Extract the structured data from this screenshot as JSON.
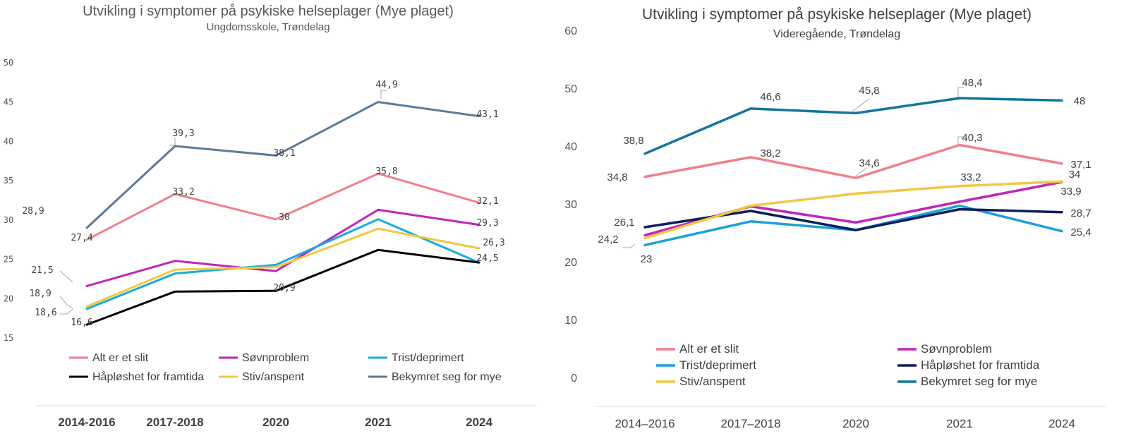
{
  "chart_data": [
    {
      "type": "line",
      "title": "Utvikling i symptomer på psykiske helseplager (Mye plaget)",
      "subtitle": "Ungdomsskole, Trøndelag",
      "categories": [
        "2014-2016",
        "2017-2018",
        "2020",
        "2021",
        "2024"
      ],
      "ylim": [
        15,
        50
      ],
      "yticks": [
        15,
        20,
        25,
        30,
        35,
        40,
        45,
        50
      ],
      "grid": false,
      "legend": "bottom",
      "series": [
        {
          "name": "Alt er et slit",
          "color": "#f07f8c",
          "values": [
            27.4,
            33.2,
            30,
            35.8,
            32.1
          ],
          "labels": [
            "27,4",
            "33,2",
            "30",
            "35,8",
            "32,1"
          ]
        },
        {
          "name": "Søvnproblem",
          "color": "#c026b8",
          "values": [
            21.5,
            24.7,
            23.4,
            31.2,
            29.3
          ],
          "labels": [
            "21,5",
            "",
            "",
            "",
            "29,3"
          ]
        },
        {
          "name": "Trist/deprimert",
          "color": "#1aabe0",
          "values": [
            18.6,
            23.1,
            24.2,
            30.0,
            24.5
          ],
          "labels": [
            "18,6",
            "",
            "",
            "",
            "24,5"
          ]
        },
        {
          "name": "Håpløshet for framtida",
          "color": "#000000",
          "values": [
            16.6,
            20.8,
            20.9,
            26.1,
            24.5
          ],
          "labels": [
            "16,6",
            "",
            "20,9",
            "",
            ""
          ]
        },
        {
          "name": "Stiv/anspent",
          "color": "#f2c744",
          "values": [
            18.9,
            23.6,
            23.9,
            28.8,
            26.3
          ],
          "labels": [
            "18,9",
            "",
            "",
            "",
            "26,3"
          ]
        },
        {
          "name": "Bekymret seg for mye",
          "color": "#5b7a99",
          "values": [
            28.9,
            39.3,
            38.1,
            44.9,
            43.1
          ],
          "labels": [
            "28,9",
            "39,3",
            "38,1",
            "44,9",
            "43,1"
          ]
        }
      ]
    },
    {
      "type": "line",
      "title": "Utvikling i symptomer på psykiske helseplager (Mye plaget)",
      "subtitle": "Videregående, Trøndelag",
      "categories": [
        "2014–2016",
        "2017–2018",
        "2020",
        "2021",
        "2024"
      ],
      "ylim": [
        0,
        60
      ],
      "yticks": [
        0,
        10,
        20,
        30,
        40,
        50,
        60
      ],
      "grid": false,
      "legend": "bottom",
      "series": [
        {
          "name": "Alt er et slit",
          "color": "#f07f8c",
          "values": [
            34.8,
            38.2,
            34.6,
            40.3,
            37.1
          ],
          "labels": [
            "34,8",
            "38,2",
            "34,6",
            "40,3",
            "37,1"
          ]
        },
        {
          "name": "Søvnproblem",
          "color": "#c026b8",
          "values": [
            24.7,
            29.7,
            26.9,
            30.5,
            33.9
          ],
          "labels": [
            "",
            "",
            "",
            "",
            "33,9"
          ]
        },
        {
          "name": "Trist/deprimert",
          "color": "#1aa1d9",
          "values": [
            23,
            27.1,
            25.6,
            29.8,
            25.4
          ],
          "labels": [
            "23",
            "",
            "",
            "",
            "25,4"
          ]
        },
        {
          "name": "Håpløshet for framtida",
          "color": "#0d1f5c",
          "values": [
            26.1,
            28.9,
            25.6,
            29.2,
            28.7
          ],
          "labels": [
            "26,1",
            "",
            "",
            "",
            "28,7"
          ]
        },
        {
          "name": "Stiv/anspent",
          "color": "#f2c744",
          "values": [
            24.2,
            29.8,
            31.9,
            33.2,
            34
          ],
          "labels": [
            "24,2",
            "",
            "",
            "33,2",
            "34"
          ]
        },
        {
          "name": "Bekymret seg for mye",
          "color": "#13759c",
          "values": [
            38.8,
            46.6,
            45.8,
            48.4,
            48
          ],
          "labels": [
            "38,8",
            "46,6",
            "45,8",
            "48,4",
            "48"
          ]
        }
      ]
    }
  ]
}
